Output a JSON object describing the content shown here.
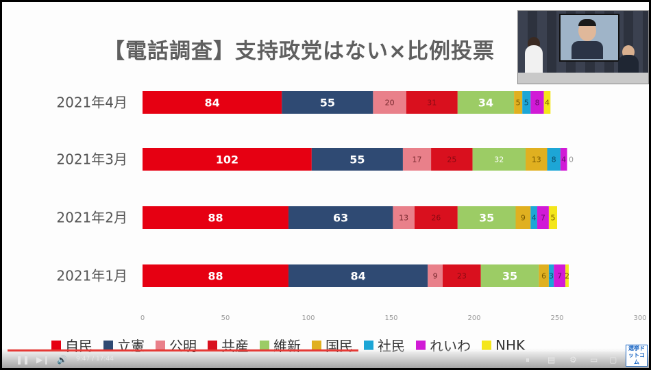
{
  "chart_data": {
    "type": "bar",
    "orientation": "horizontal",
    "stacked": true,
    "title": "【電話調査】支持政党はない×比例投票",
    "categories": [
      "2021年4月",
      "2021年3月",
      "2021年2月",
      "2021年1月"
    ],
    "xlim": [
      0,
      300
    ],
    "x_ticks": [
      "0",
      "50",
      "100",
      "150",
      "200",
      "250",
      "300"
    ],
    "grid": false,
    "legend_position": "bottom",
    "series": [
      {
        "name": "自民",
        "color": "#e60012",
        "values": [
          84,
          102,
          88,
          88
        ]
      },
      {
        "name": "立憲",
        "color": "#2f4a73",
        "values": [
          55,
          55,
          63,
          84
        ]
      },
      {
        "name": "公明",
        "color": "#e9808a",
        "values": [
          20,
          17,
          13,
          9
        ]
      },
      {
        "name": "共産",
        "color": "#d9101e",
        "values": [
          31,
          25,
          26,
          23
        ]
      },
      {
        "name": "維新",
        "color": "#9ccc65",
        "values": [
          34,
          32,
          35,
          35
        ]
      },
      {
        "name": "国民",
        "color": "#e0b020",
        "values": [
          5,
          13,
          9,
          6
        ]
      },
      {
        "name": "社民",
        "color": "#1da6d6",
        "values": [
          5,
          8,
          4,
          3
        ]
      },
      {
        "name": "れいわ",
        "color": "#d11ad6",
        "values": [
          8,
          4,
          7,
          7
        ]
      },
      {
        "name": "NHK",
        "color": "#f4e61b",
        "values": [
          4,
          0,
          5,
          2
        ]
      }
    ]
  },
  "player": {
    "current_time": "9:47",
    "duration": "17:44",
    "progress": 0.552
  },
  "logo": {
    "text": "選挙ドットコム"
  }
}
